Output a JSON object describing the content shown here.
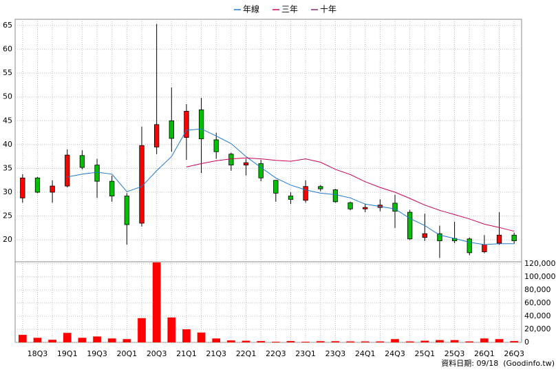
{
  "chart_data": {
    "type": "candlestick",
    "categories": [
      null,
      "18Q3",
      null,
      "19Q1",
      null,
      "19Q3",
      null,
      "20Q1",
      null,
      "20Q3",
      null,
      "21Q1",
      null,
      "21Q3",
      null,
      "22Q1",
      null,
      "22Q3",
      null,
      "23Q1",
      null,
      "23Q3",
      null,
      "24Q1",
      null,
      "24Q3",
      null,
      "25Q1",
      null,
      "25Q3",
      null,
      "26Q1",
      null,
      "26Q3"
    ],
    "open": [
      28.8,
      33,
      30,
      31.3,
      37.7,
      35.7,
      32.3,
      29.2,
      23.5,
      39.5,
      45,
      41.5,
      47.3,
      41,
      38,
      35.7,
      36,
      32.5,
      29.2,
      28.3,
      31.2,
      30.5,
      27.8,
      26.5,
      26.8,
      27.7,
      25.8,
      20.5,
      21.3,
      20.3,
      20.2,
      17.5,
      19.3,
      21
    ],
    "high": [
      33.8,
      33.2,
      32.5,
      39,
      38.8,
      37,
      33.5,
      29.8,
      43.8,
      65.3,
      52,
      48.5,
      49.8,
      42.5,
      38.3,
      37,
      36.8,
      32.5,
      30,
      32.5,
      31.5,
      30.7,
      28,
      27.5,
      28.5,
      29.5,
      26.3,
      25.5,
      23,
      23.8,
      20.5,
      21,
      25.8,
      21.5
    ],
    "low": [
      27.8,
      29.8,
      27.8,
      31,
      34.8,
      28.8,
      28,
      19,
      22.8,
      38,
      38.5,
      36.8,
      34,
      37,
      34.5,
      33.5,
      32.3,
      28,
      27.5,
      27.8,
      30.2,
      27.8,
      26.2,
      25.8,
      26,
      22.5,
      20,
      19.8,
      16.2,
      19.3,
      16.8,
      17.2,
      19,
      19.2
    ],
    "close": [
      33,
      30,
      31.3,
      37.8,
      35.2,
      32.3,
      29.2,
      23.2,
      39.8,
      44.2,
      41.3,
      47,
      41.2,
      38.5,
      35.7,
      36.2,
      33,
      29.8,
      28.5,
      31.2,
      30.7,
      28,
      26.5,
      26.8,
      27.3,
      26,
      20.2,
      21.3,
      19.8,
      19.8,
      17.3,
      19,
      21,
      19.8
    ],
    "up_color": "#ff0000",
    "down_color": "#00c000",
    "series": [
      {
        "name": "年線",
        "color": "#1e78c8",
        "values": [
          null,
          null,
          null,
          33.2,
          33.8,
          34.2,
          33.8,
          30.1,
          31.2,
          34.5,
          37.5,
          43,
          43.3,
          41.8,
          40.2,
          37.5,
          35.2,
          33,
          31.5,
          30.5,
          29.8,
          29.5,
          28.8,
          27.5,
          27,
          26.5,
          24.5,
          23,
          21,
          20.3,
          19.5,
          19,
          19.2,
          19.2
        ]
      },
      {
        "name": "三年",
        "color": "#c8005a",
        "values": [
          null,
          null,
          null,
          null,
          null,
          null,
          null,
          null,
          null,
          null,
          null,
          35.3,
          36,
          36.6,
          37,
          37.2,
          37,
          36.7,
          36.5,
          37,
          36.3,
          34.8,
          33.7,
          32.2,
          31,
          30,
          28.7,
          27.3,
          26.2,
          25.3,
          24.4,
          23.3,
          22.6,
          21.8
        ]
      },
      {
        "name": "十年",
        "color": "#7a2a6a",
        "values": [
          null,
          null,
          null,
          null,
          null,
          null,
          null,
          null,
          null,
          null,
          null,
          null,
          null,
          null,
          null,
          null,
          null,
          null,
          null,
          null,
          null,
          null,
          null,
          null,
          null,
          null,
          null,
          null,
          null,
          null,
          null,
          null,
          null,
          null
        ]
      }
    ],
    "ylim": [
      15.4,
      66.3
    ],
    "yticks": [
      20,
      25,
      30,
      35,
      40,
      45,
      50,
      55,
      60,
      65
    ],
    "grid": true,
    "legend": "top",
    "volume": {
      "color": "#ff0000",
      "values": [
        11500,
        7000,
        4000,
        14500,
        7000,
        9000,
        6000,
        5000,
        37000,
        122000,
        38000,
        20000,
        15000,
        6000,
        3000,
        2500,
        2000,
        1000,
        2000,
        1000,
        1800,
        1800,
        1500,
        1500,
        1500,
        5000,
        1500,
        2500,
        3500,
        3500,
        1500,
        6000,
        5000,
        2000
      ],
      "ylim": [
        0,
        123000
      ],
      "yticks": [
        0,
        {
          "value": 20000,
          "label": "20,000"
        },
        {
          "value": 40000,
          "label": "40,000"
        },
        {
          "value": 60000,
          "label": "60,000"
        },
        {
          "value": 80000,
          "label": "80,000"
        },
        {
          "value": 100000,
          "label": "100,000"
        },
        {
          "value": 120000,
          "label": "120,000"
        }
      ]
    },
    "source": "資料日期: 09/18  (Goodinfo.tw)"
  }
}
